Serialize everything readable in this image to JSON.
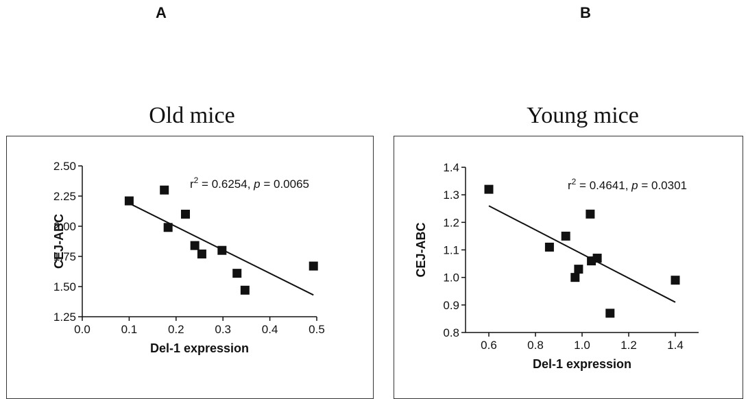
{
  "panels": [
    {
      "letter": "A",
      "title": "Old mice"
    },
    {
      "letter": "B",
      "title": "Young mice"
    }
  ],
  "chart_data": [
    {
      "type": "scatter",
      "title": "Old mice",
      "xlabel": "Del-1 expression",
      "ylabel": "CEJ-ABC",
      "annotation": "r² = 0.6254, p = 0.0065",
      "annotation_parts": {
        "r": "r",
        "sup": "2",
        "eq1": " = 0.6254, ",
        "p": "p",
        "eq2": " = 0.0065"
      },
      "xlim": [
        0.0,
        0.5
      ],
      "ylim": [
        1.25,
        2.5
      ],
      "xticks": [
        "0.0",
        "0.1",
        "0.2",
        "0.3",
        "0.4",
        "0.5"
      ],
      "yticks": [
        "1.25",
        "1.50",
        "1.75",
        "2.00",
        "2.25",
        "2.50"
      ],
      "x": [
        0.1,
        0.175,
        0.183,
        0.22,
        0.24,
        0.255,
        0.298,
        0.33,
        0.347,
        0.493
      ],
      "y": [
        2.21,
        2.3,
        1.99,
        2.1,
        1.84,
        1.77,
        1.8,
        1.61,
        1.47,
        1.67
      ],
      "fit_line": {
        "x": [
          0.1,
          0.493
        ],
        "y": [
          2.19,
          1.43
        ]
      }
    },
    {
      "type": "scatter",
      "title": "Young mice",
      "xlabel": "Del-1 expression",
      "ylabel": "CEJ-ABC",
      "annotation": "r² = 0.4641, p = 0.0301",
      "annotation_parts": {
        "r": "r",
        "sup": "2",
        "eq1": " = 0.4641, ",
        "p": "p",
        "eq2": " = 0.0301"
      },
      "xlim": [
        0.5,
        1.5
      ],
      "ylim": [
        0.8,
        1.4
      ],
      "xticks": [
        "0.6",
        "0.8",
        "1.0",
        "1.2",
        "1.4"
      ],
      "yticks": [
        "0.8",
        "0.9",
        "1.0",
        "1.1",
        "1.2",
        "1.3",
        "1.4"
      ],
      "x": [
        0.6,
        0.86,
        0.93,
        0.97,
        0.985,
        1.035,
        1.04,
        1.065,
        1.12,
        1.4
      ],
      "y": [
        1.32,
        1.11,
        1.15,
        1.0,
        1.03,
        1.23,
        1.06,
        1.07,
        0.87,
        0.99
      ],
      "fit_line": {
        "x": [
          0.6,
          1.4
        ],
        "y": [
          1.26,
          0.91
        ]
      }
    }
  ]
}
